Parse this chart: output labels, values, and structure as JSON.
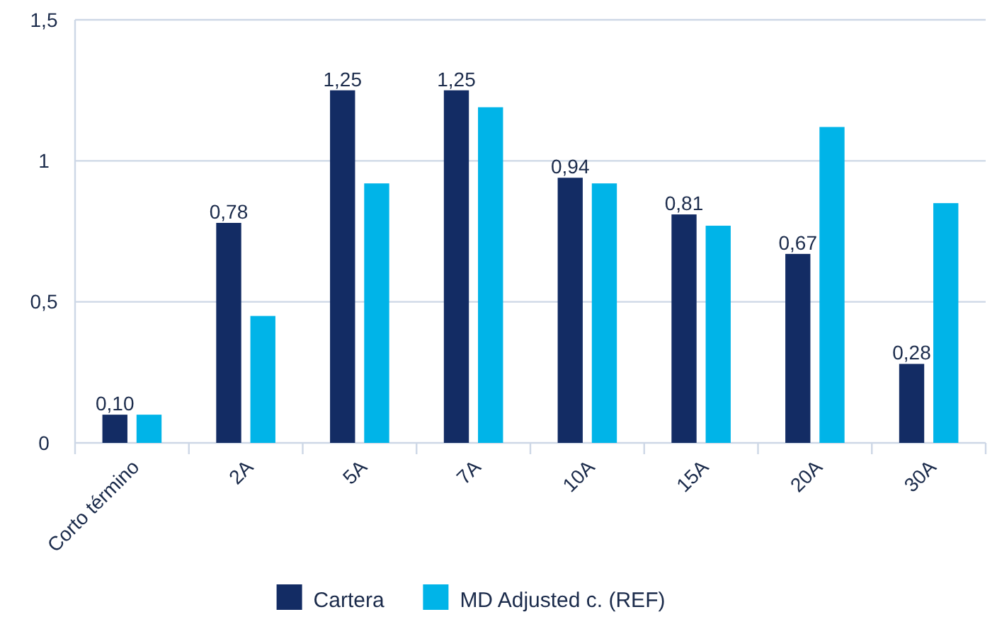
{
  "chart_data": {
    "type": "bar",
    "categories": [
      "Corto término",
      "2A",
      "5A",
      "7A",
      "10A",
      "15A",
      "20A",
      "30A"
    ],
    "series": [
      {
        "name": "Cartera",
        "color": "#132c64",
        "values": [
          0.1,
          0.78,
          1.25,
          1.25,
          0.94,
          0.81,
          0.67,
          0.28
        ],
        "value_labels": [
          "0,10",
          "0,78",
          "1,25",
          "1,25",
          "0,94",
          "0,81",
          "0,67",
          "0,28"
        ]
      },
      {
        "name": "MD Adjusted c. (REF)",
        "color": "#00b4e8",
        "values": [
          0.1,
          0.45,
          0.92,
          1.19,
          0.92,
          0.77,
          1.12,
          0.85
        ]
      }
    ],
    "ylim": [
      0,
      1.5
    ],
    "yticks": [
      {
        "value": 0,
        "label": "0"
      },
      {
        "value": 0.5,
        "label": "0,5"
      },
      {
        "value": 1,
        "label": "1"
      },
      {
        "value": 1.5,
        "label": "1,5"
      }
    ],
    "grid": "y",
    "legend": "bottom"
  }
}
